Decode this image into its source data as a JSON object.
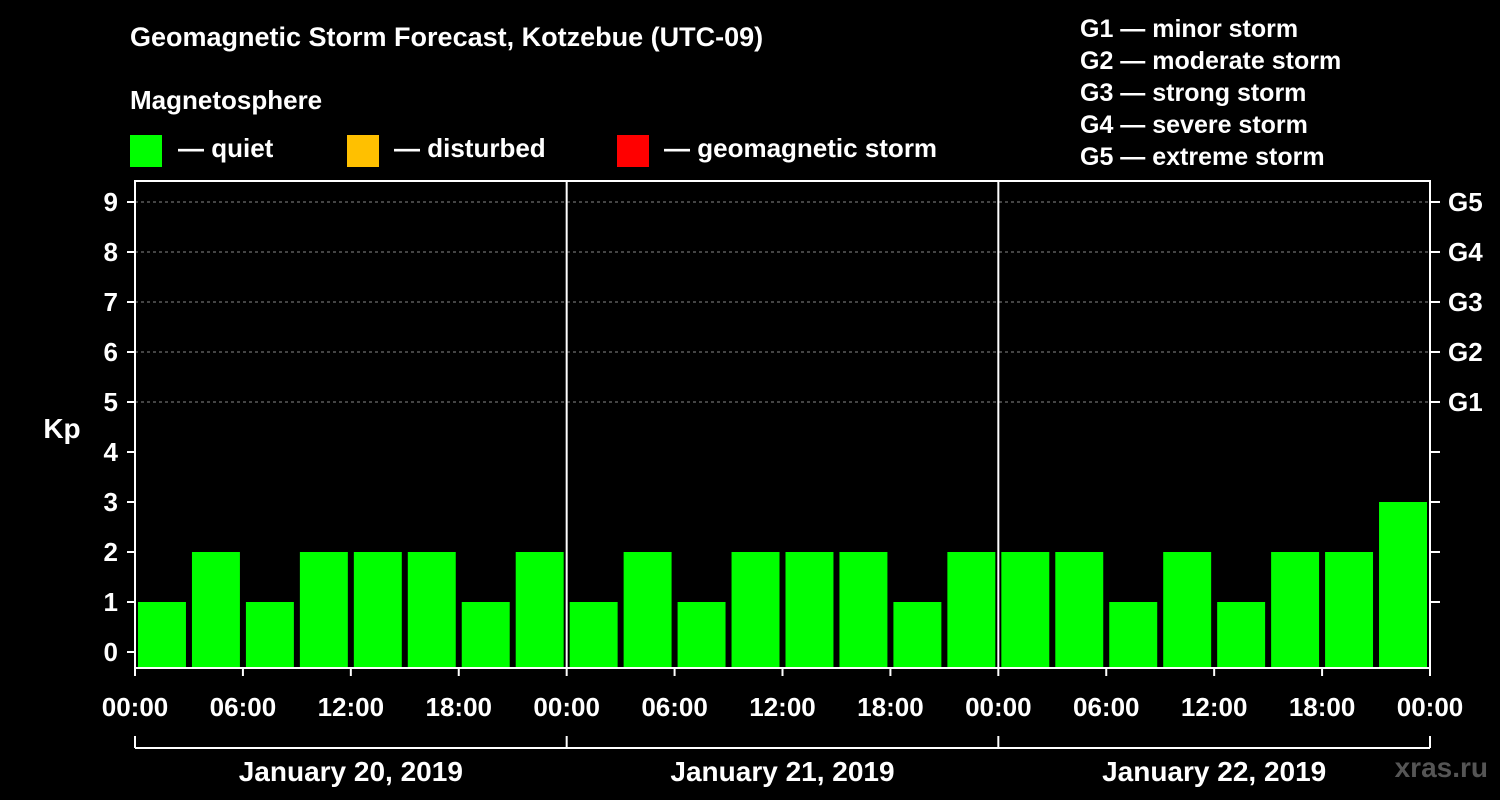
{
  "title": "Geomagnetic Storm Forecast, Kotzebue (UTC-09)",
  "magnetosphere_title": "Magnetosphere",
  "legend": [
    {
      "label": "— quiet",
      "color": "#00ff00"
    },
    {
      "label": "— disturbed",
      "color": "#ffc000"
    },
    {
      "label": "— geomagnetic storm",
      "color": "#ff0000"
    }
  ],
  "g_scale": [
    "G1 — minor storm",
    "G2 — moderate storm",
    "G3 — strong storm",
    "G4 — severe storm",
    "G5 — extreme storm"
  ],
  "watermark": "xras.ru",
  "chart_data": {
    "type": "bar",
    "title": "Geomagnetic Storm Forecast, Kotzebue (UTC-09)",
    "ylabel": "Kp",
    "ylim": [
      0,
      9
    ],
    "yticks": [
      0,
      1,
      2,
      3,
      4,
      5,
      6,
      7,
      8,
      9
    ],
    "right_axis_labels": [
      {
        "kp": 5,
        "label": "G1"
      },
      {
        "kp": 6,
        "label": "G2"
      },
      {
        "kp": 7,
        "label": "G3"
      },
      {
        "kp": 8,
        "label": "G4"
      },
      {
        "kp": 9,
        "label": "G5"
      }
    ],
    "x_tick_labels": [
      "00:00",
      "06:00",
      "12:00",
      "18:00",
      "00:00",
      "06:00",
      "12:00",
      "18:00",
      "00:00",
      "06:00",
      "12:00",
      "18:00",
      "00:00"
    ],
    "days": [
      "January 20, 2019",
      "January 21, 2019",
      "January 22, 2019"
    ],
    "interval_hours": 3,
    "values": [
      1,
      2,
      1,
      2,
      2,
      2,
      1,
      2,
      1,
      2,
      1,
      2,
      2,
      2,
      1,
      2,
      2,
      2,
      1,
      2,
      1,
      2,
      2,
      3
    ],
    "bar_color": "#00ff00",
    "gridlines": "dashed at Kp 5-9"
  }
}
